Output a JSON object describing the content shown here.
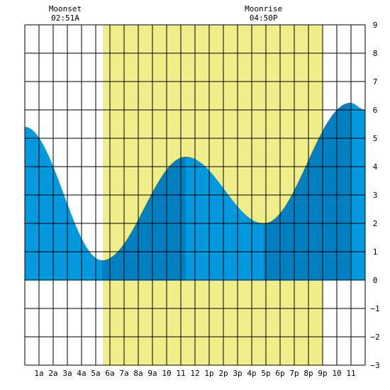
{
  "chart_data": {
    "type": "area",
    "title": "",
    "xlabel": "",
    "ylabel": "",
    "xlim": [
      0,
      24
    ],
    "ylim": [
      -3,
      9
    ],
    "y_ticks": [
      9,
      8,
      7,
      6,
      5,
      4,
      3,
      2,
      1,
      0,
      -1,
      -2,
      -3
    ],
    "x_tick_labels": [
      "1a",
      "2a",
      "3a",
      "4a",
      "5a",
      "6a",
      "7a",
      "8a",
      "9a",
      "10",
      "11",
      "12",
      "1p",
      "2p",
      "3p",
      "4p",
      "5p",
      "6p",
      "7p",
      "8p",
      "9p",
      "10",
      "11"
    ],
    "grid": true,
    "daylight": {
      "start": 5.5,
      "end": 21.0
    },
    "annotations": [
      {
        "label": "Moonset",
        "time": "02:51A",
        "x": 2.85
      },
      {
        "label": "Moonrise",
        "time": "04:50P",
        "x": 16.83
      }
    ],
    "tide_extremes": [
      {
        "x": 0.0,
        "y": 5.4
      },
      {
        "x": 5.45,
        "y": 0.7
      },
      {
        "x": 11.35,
        "y": 4.35
      },
      {
        "x": 16.85,
        "y": 2.0
      },
      {
        "x": 22.95,
        "y": 6.25
      },
      {
        "x": 24.0,
        "y": 6.0
      }
    ],
    "shade_breaks": [
      5.45,
      11.35,
      16.85,
      22.95
    ],
    "colors": {
      "daylight": "#f0ee8a",
      "tide_light": "#0099dd",
      "tide_dark": "#0080c0",
      "grid": "#000000"
    }
  }
}
